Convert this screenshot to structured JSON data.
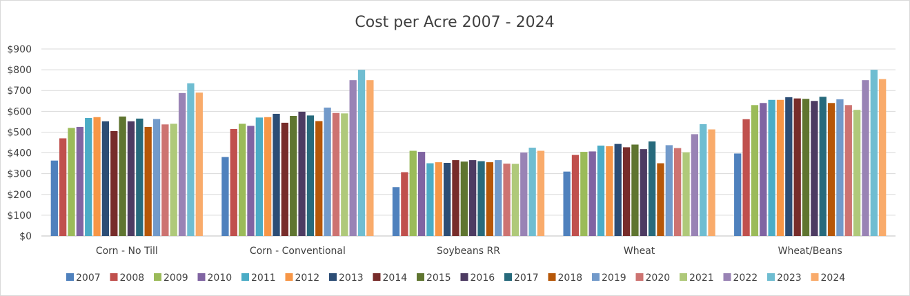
{
  "chart_data": {
    "type": "bar",
    "title": "Cost per Acre 2007 - 2024",
    "xlabel": "",
    "ylabel": "",
    "ylim": [
      0,
      900
    ],
    "y_ticks": [
      "$0",
      "$100",
      "$200",
      "$300",
      "$400",
      "$500",
      "$600",
      "$700",
      "$800",
      "$900"
    ],
    "grid": true,
    "legend_position": "bottom",
    "categories": [
      "Corn - No Till",
      "Corn - Conventional",
      "Soybeans RR",
      "Wheat",
      "Wheat/Beans"
    ],
    "series": [
      {
        "name": "2007",
        "color": "#4F81BD",
        "values": [
          363,
          380,
          235,
          310,
          397
        ]
      },
      {
        "name": "2008",
        "color": "#C0504D",
        "values": [
          470,
          515,
          307,
          390,
          562
        ]
      },
      {
        "name": "2009",
        "color": "#9BBB59",
        "values": [
          520,
          540,
          410,
          405,
          630
        ]
      },
      {
        "name": "2010",
        "color": "#8064A2",
        "values": [
          525,
          530,
          405,
          407,
          640
        ]
      },
      {
        "name": "2011",
        "color": "#4BACC6",
        "values": [
          568,
          570,
          350,
          435,
          655
        ]
      },
      {
        "name": "2012",
        "color": "#F79646",
        "values": [
          572,
          572,
          355,
          432,
          655
        ]
      },
      {
        "name": "2013",
        "color": "#2C4D75",
        "values": [
          552,
          588,
          352,
          443,
          668
        ]
      },
      {
        "name": "2014",
        "color": "#772C2A",
        "values": [
          505,
          545,
          365,
          427,
          662
        ]
      },
      {
        "name": "2015",
        "color": "#5F7530",
        "values": [
          575,
          578,
          358,
          440,
          660
        ]
      },
      {
        "name": "2016",
        "color": "#4D3B62",
        "values": [
          552,
          598,
          365,
          418,
          650
        ]
      },
      {
        "name": "2017",
        "color": "#276A7C",
        "values": [
          565,
          580,
          360,
          455,
          670
        ]
      },
      {
        "name": "2018",
        "color": "#B65708",
        "values": [
          525,
          553,
          355,
          350,
          640
        ]
      },
      {
        "name": "2019",
        "color": "#729ACA",
        "values": [
          563,
          618,
          365,
          437,
          658
        ]
      },
      {
        "name": "2020",
        "color": "#CD7371",
        "values": [
          537,
          592,
          348,
          423,
          630
        ]
      },
      {
        "name": "2021",
        "color": "#AFC97A",
        "values": [
          540,
          590,
          347,
          403,
          607
        ]
      },
      {
        "name": "2022",
        "color": "#9983B5",
        "values": [
          688,
          750,
          402,
          490,
          750
        ]
      },
      {
        "name": "2023",
        "color": "#6FBDD1",
        "values": [
          735,
          800,
          425,
          538,
          800
        ]
      },
      {
        "name": "2024",
        "color": "#F9AB6B",
        "values": [
          690,
          750,
          410,
          513,
          755
        ]
      }
    ],
    "gridline_color": "#d9d9d9",
    "axis_color": "#bfbfbf"
  }
}
